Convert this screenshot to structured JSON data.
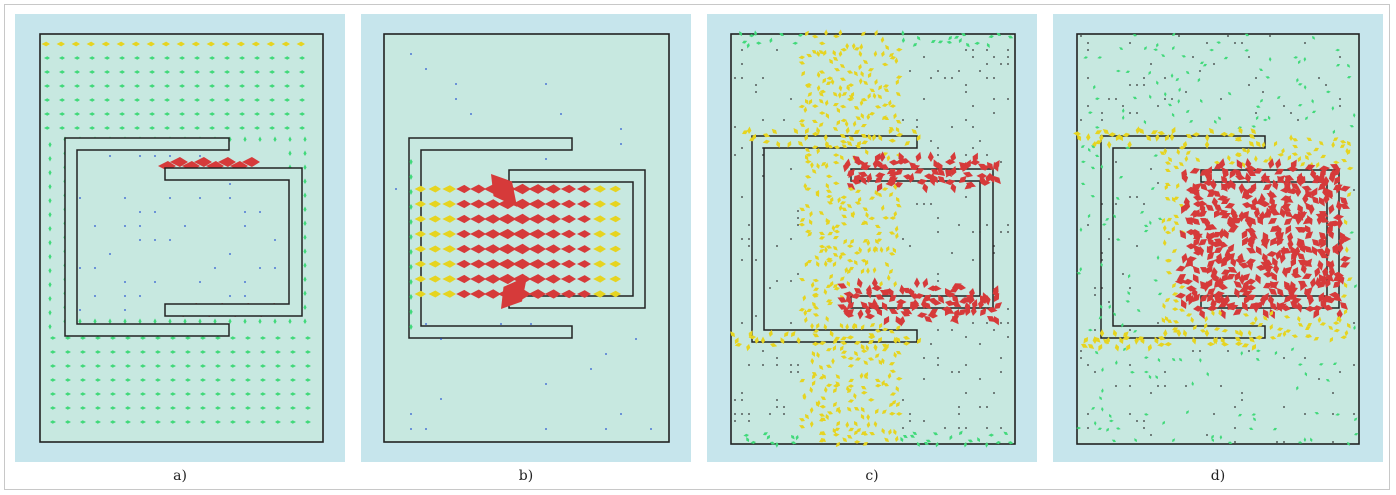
{
  "colors": {
    "panel_background": "#c6e5ec",
    "domain_fill": "#c7e8e0",
    "outline": "#222222",
    "low": "#41d97a",
    "mid": "#e6d420",
    "high": "#d63a3a",
    "dot": "#2a55d0"
  },
  "panels": [
    {
      "id": "a",
      "caption": "a)",
      "field": "arrow-vector-field"
    },
    {
      "id": "b",
      "caption": "b)",
      "field": "arrow-vector-field"
    },
    {
      "id": "c",
      "caption": "c)",
      "field": "dense-arrow-field"
    },
    {
      "id": "d",
      "caption": "d)",
      "field": "dense-arrow-field"
    }
  ]
}
